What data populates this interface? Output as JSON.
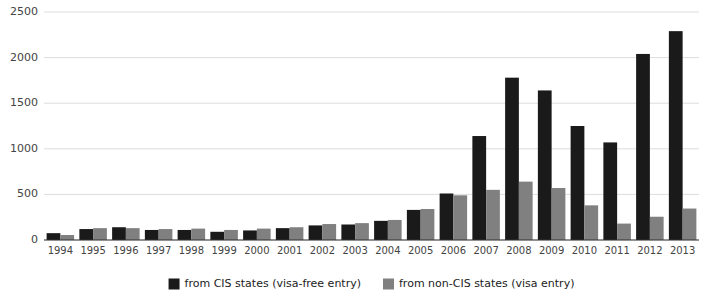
{
  "chart_data": {
    "type": "bar",
    "categories": [
      "1994",
      "1995",
      "1996",
      "1997",
      "1998",
      "1999",
      "2000",
      "2001",
      "2002",
      "2003",
      "2004",
      "2005",
      "2006",
      "2007",
      "2008",
      "2009",
      "2010",
      "2011",
      "2012",
      "2013"
    ],
    "series": [
      {
        "name": "from CIS states (visa-free entry)",
        "color": "#1a1a1a",
        "values": [
          75,
          120,
          140,
          110,
          110,
          90,
          105,
          130,
          160,
          170,
          210,
          330,
          510,
          1140,
          1780,
          1640,
          1250,
          1070,
          2040,
          2290
        ]
      },
      {
        "name": "from non-CIS states (visa entry)",
        "color": "#808080",
        "values": [
          55,
          130,
          130,
          120,
          125,
          110,
          125,
          140,
          175,
          185,
          220,
          340,
          490,
          550,
          640,
          570,
          380,
          180,
          255,
          345
        ]
      }
    ],
    "ylim": [
      0,
      2500
    ],
    "yticks": [
      0,
      500,
      1000,
      1500,
      2000,
      2500
    ],
    "grid": true,
    "legend": "bottom"
  }
}
